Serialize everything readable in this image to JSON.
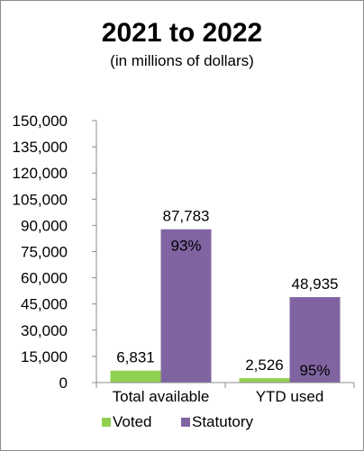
{
  "chart_data": {
    "type": "bar",
    "title": "2021 to 2022",
    "subtitle": "(in millions of dollars)",
    "categories": [
      "Total available",
      "YTD used"
    ],
    "series": [
      {
        "name": "Voted",
        "values": [
          6831,
          2526
        ],
        "labels": [
          "6,831",
          "2,526"
        ],
        "color": "#92d050"
      },
      {
        "name": "Statutory",
        "values": [
          87783,
          48935
        ],
        "labels": [
          "87,783",
          "48,935"
        ],
        "color": "#8064a2"
      }
    ],
    "percent_labels": [
      "93%",
      "95%"
    ],
    "yticks": [
      "0",
      "15,000",
      "30,000",
      "45,000",
      "60,000",
      "75,000",
      "90,000",
      "105,000",
      "120,000",
      "135,000",
      "150,000"
    ],
    "ylim": [
      0,
      150000
    ],
    "legend_position": "bottom",
    "grid": false
  }
}
